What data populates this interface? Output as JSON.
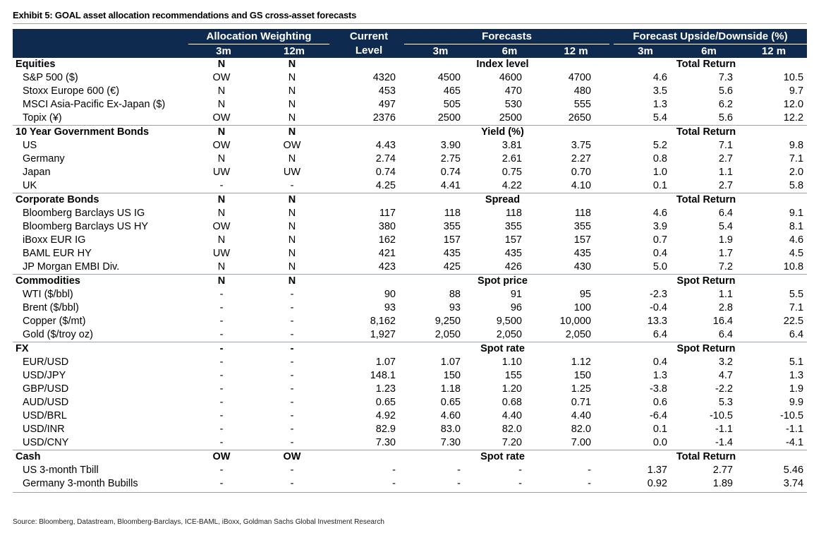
{
  "title": "Exhibit 5: GOAL asset allocation recommendations and GS cross-asset forecasts",
  "header": {
    "allocation": "Allocation Weighting",
    "current_top": "Current",
    "current_bottom": "Level",
    "forecasts": "Forecasts",
    "upside": "Forecast Upside/Downside (%)",
    "sub": [
      "3m",
      "12m",
      "3m",
      "6m",
      "12 m",
      "3m",
      "6m",
      "12 m"
    ]
  },
  "sections": [
    {
      "name": "Equities",
      "alloc3m": "N",
      "alloc12m": "N",
      "forecast_label": "Index level",
      "return_label": "Total Return",
      "rows": [
        {
          "label": "S&P 500 ($)",
          "a3": "OW",
          "a12": "N",
          "cur": "4320",
          "f3": "4500",
          "f6": "4600",
          "f12": "4700",
          "u3": "4.6",
          "u6": "7.3",
          "u12": "10.5"
        },
        {
          "label": "Stoxx Europe 600 (€)",
          "a3": "N",
          "a12": "N",
          "cur": "453",
          "f3": "465",
          "f6": "470",
          "f12": "480",
          "u3": "3.5",
          "u6": "5.6",
          "u12": "9.7"
        },
        {
          "label": "MSCI Asia-Pacific Ex-Japan ($)",
          "a3": "N",
          "a12": "N",
          "cur": "497",
          "f3": "505",
          "f6": "530",
          "f12": "555",
          "u3": "1.3",
          "u6": "6.2",
          "u12": "12.0"
        },
        {
          "label": "Topix (¥)",
          "a3": "OW",
          "a12": "N",
          "cur": "2376",
          "f3": "2500",
          "f6": "2500",
          "f12": "2650",
          "u3": "5.4",
          "u6": "5.6",
          "u12": "12.2"
        }
      ]
    },
    {
      "name": "10 Year Government Bonds",
      "alloc3m": "N",
      "alloc12m": "N",
      "forecast_label": "Yield (%)",
      "return_label": "Total Return",
      "rows": [
        {
          "label": "US",
          "a3": "OW",
          "a12": "OW",
          "cur": "4.43",
          "f3": "3.90",
          "f6": "3.81",
          "f12": "3.75",
          "u3": "5.2",
          "u6": "7.1",
          "u12": "9.8"
        },
        {
          "label": "Germany",
          "a3": "N",
          "a12": "N",
          "cur": "2.74",
          "f3": "2.75",
          "f6": "2.61",
          "f12": "2.27",
          "u3": "0.8",
          "u6": "2.7",
          "u12": "7.1"
        },
        {
          "label": "Japan",
          "a3": "UW",
          "a12": "UW",
          "cur": "0.74",
          "f3": "0.74",
          "f6": "0.75",
          "f12": "0.70",
          "u3": "1.0",
          "u6": "1.1",
          "u12": "2.0"
        },
        {
          "label": "UK",
          "a3": "-",
          "a12": "-",
          "cur": "4.25",
          "f3": "4.41",
          "f6": "4.22",
          "f12": "4.10",
          "u3": "0.1",
          "u6": "2.7",
          "u12": "5.8"
        }
      ]
    },
    {
      "name": "Corporate Bonds",
      "alloc3m": "N",
      "alloc12m": "N",
      "forecast_label": "Spread",
      "return_label": "Total Return",
      "rows": [
        {
          "label": "Bloomberg Barclays US IG",
          "a3": "N",
          "a12": "N",
          "cur": "117",
          "f3": "118",
          "f6": "118",
          "f12": "118",
          "u3": "4.6",
          "u6": "6.4",
          "u12": "9.1"
        },
        {
          "label": "Bloomberg Barclays US HY",
          "a3": "OW",
          "a12": "N",
          "cur": "380",
          "f3": "355",
          "f6": "355",
          "f12": "355",
          "u3": "3.9",
          "u6": "5.4",
          "u12": "8.1"
        },
        {
          "label": "iBoxx EUR IG",
          "a3": "N",
          "a12": "N",
          "cur": "162",
          "f3": "157",
          "f6": "157",
          "f12": "157",
          "u3": "0.7",
          "u6": "1.9",
          "u12": "4.6"
        },
        {
          "label": "BAML EUR HY",
          "a3": "UW",
          "a12": "N",
          "cur": "421",
          "f3": "435",
          "f6": "435",
          "f12": "435",
          "u3": "0.4",
          "u6": "1.7",
          "u12": "4.5"
        },
        {
          "label": "JP Morgan EMBI Div.",
          "a3": "N",
          "a12": "N",
          "cur": "423",
          "f3": "425",
          "f6": "426",
          "f12": "430",
          "u3": "5.0",
          "u6": "7.2",
          "u12": "10.8"
        }
      ]
    },
    {
      "name": "Commodities",
      "alloc3m": "N",
      "alloc12m": "N",
      "forecast_label": "Spot price",
      "return_label": "Spot Return",
      "rows": [
        {
          "label": "WTI  ($/bbl)",
          "a3": "-",
          "a12": "-",
          "cur": "90",
          "f3": "88",
          "f6": "91",
          "f12": "95",
          "u3": "-2.3",
          "u6": "1.1",
          "u12": "5.5"
        },
        {
          "label": "Brent ($/bbl)",
          "a3": "-",
          "a12": "-",
          "cur": "93",
          "f3": "93",
          "f6": "96",
          "f12": "100",
          "u3": "-0.4",
          "u6": "2.8",
          "u12": "7.1"
        },
        {
          "label": "Copper ($/mt)",
          "a3": "-",
          "a12": "-",
          "cur": "8,162",
          "f3": "9,250",
          "f6": "9,500",
          "f12": "10,000",
          "u3": "13.3",
          "u6": "16.4",
          "u12": "22.5"
        },
        {
          "label": "Gold ($/troy oz)",
          "a3": "-",
          "a12": "-",
          "cur": "1,927",
          "f3": "2,050",
          "f6": "2,050",
          "f12": "2,050",
          "u3": "6.4",
          "u6": "6.4",
          "u12": "6.4"
        }
      ]
    },
    {
      "name": "FX",
      "alloc3m": "-",
      "alloc12m": "-",
      "forecast_label": "Spot rate",
      "return_label": "Spot Return",
      "rows": [
        {
          "label": "EUR/USD",
          "a3": "-",
          "a12": "-",
          "cur": "1.07",
          "f3": "1.07",
          "f6": "1.10",
          "f12": "1.12",
          "u3": "0.4",
          "u6": "3.2",
          "u12": "5.1"
        },
        {
          "label": "USD/JPY",
          "a3": "-",
          "a12": "-",
          "cur": "148.1",
          "f3": "150",
          "f6": "155",
          "f12": "150",
          "u3": "1.3",
          "u6": "4.7",
          "u12": "1.3"
        },
        {
          "label": "GBP/USD",
          "a3": "-",
          "a12": "-",
          "cur": "1.23",
          "f3": "1.18",
          "f6": "1.20",
          "f12": "1.25",
          "u3": "-3.8",
          "u6": "-2.2",
          "u12": "1.9"
        },
        {
          "label": "AUD/USD",
          "a3": "-",
          "a12": "-",
          "cur": "0.65",
          "f3": "0.65",
          "f6": "0.68",
          "f12": "0.71",
          "u3": "0.6",
          "u6": "5.3",
          "u12": "9.9"
        },
        {
          "label": "USD/BRL",
          "a3": "-",
          "a12": "-",
          "cur": "4.92",
          "f3": "4.60",
          "f6": "4.40",
          "f12": "4.40",
          "u3": "-6.4",
          "u6": "-10.5",
          "u12": "-10.5"
        },
        {
          "label": "USD/INR",
          "a3": "-",
          "a12": "-",
          "cur": "82.9",
          "f3": "83.0",
          "f6": "82.0",
          "f12": "82.0",
          "u3": "0.1",
          "u6": "-1.1",
          "u12": "-1.1"
        },
        {
          "label": "USD/CNY",
          "a3": "-",
          "a12": "-",
          "cur": "7.30",
          "f3": "7.30",
          "f6": "7.20",
          "f12": "7.00",
          "u3": "0.0",
          "u6": "-1.4",
          "u12": "-4.1"
        }
      ]
    },
    {
      "name": "Cash",
      "alloc3m": "OW",
      "alloc12m": "OW",
      "forecast_label": "Spot rate",
      "return_label": "Total Return",
      "rows": [
        {
          "label": "US 3-month Tbill",
          "a3": "-",
          "a12": "-",
          "cur": "-",
          "f3": "-",
          "f6": "-",
          "f12": "-",
          "u3": "1.37",
          "u6": "2.77",
          "u12": "5.46"
        },
        {
          "label": "Germany 3-month Bubills",
          "a3": "-",
          "a12": "-",
          "cur": "-",
          "f3": "-",
          "f6": "-",
          "f12": "-",
          "u3": "0.92",
          "u6": "1.89",
          "u12": "3.74"
        }
      ]
    }
  ],
  "source": "Source: Bloomberg, Datastream, Bloomberg-Barclays, ICE-BAML, iBoxx, Goldman Sachs Global Investment Research"
}
